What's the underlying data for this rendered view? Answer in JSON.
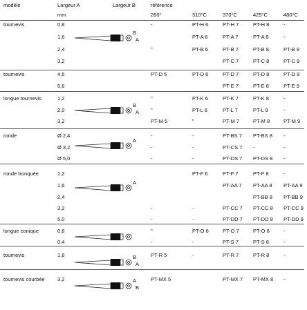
{
  "header": {
    "model": "modèle",
    "width_a": "Largeur A",
    "width_b": "Largeur B",
    "reference": "référence",
    "unit": "mm",
    "temps": [
      "260°",
      "310°C",
      "370°C",
      "425°C",
      "480°C"
    ]
  },
  "groups": [
    {
      "model": "tournevis",
      "dim_labels": [
        "B",
        "A"
      ],
      "rows": [
        [
          "0,8",
          "-",
          "PT-H 6",
          "PT-H 7",
          "PT-H 8",
          "-"
        ],
        [
          "1,6",
          null,
          "PT-A 6",
          "PT-A 7",
          "PT-A 8",
          "-"
        ],
        [
          "2,4",
          "\"",
          "PT-B 6",
          "PT-B 7",
          "PT-B 8",
          "PT-B 9"
        ],
        [
          "3,2",
          null,
          null,
          "PT-C 7",
          "PT-C 8",
          "PT-C 9"
        ]
      ]
    },
    {
      "model": "tournevis",
      "dim_labels": [],
      "rows": [
        [
          "4,6",
          "PT-D 5",
          "PT-D 6",
          "PT-D 7",
          "PT-D 8",
          "PT-D 9"
        ],
        [
          "5,6",
          null,
          null,
          "PT-E 7",
          "PT-E 8",
          "PT-E 9"
        ]
      ]
    },
    {
      "model": "longue tournevis",
      "dim_labels": [
        "B",
        "A"
      ],
      "rows": [
        [
          "1,2",
          "\"",
          "PT-K 6",
          "PT-K 7",
          "PT-K 8",
          "-"
        ],
        [
          "2,0",
          "\"",
          "PT-L 6",
          "PT-L 7",
          "PT-L 8",
          "-"
        ],
        [
          "3,2",
          "PT-M 5",
          "\"",
          "PT-M 7",
          "PT-M 8",
          "PT-M 9"
        ]
      ]
    },
    {
      "model": "ronde",
      "dim_labels": [
        "A"
      ],
      "rows": [
        [
          "Ø 2,4",
          "-",
          "-",
          "PT-BS 7",
          "PT-BS 8",
          "-"
        ],
        [
          "Ø 3,2",
          "-",
          "-",
          "PT-CS 7",
          "-",
          "-"
        ],
        [
          "Ø 5,0",
          "-",
          "-",
          "PT-DS 7",
          "PT-DS 8",
          "-"
        ]
      ]
    },
    {
      "model": "ronde tronquée",
      "dim_labels": [
        "A"
      ],
      "rows": [
        [
          "1,2",
          null,
          "PT-F 6",
          "PT-F 7",
          "PT-F 8",
          "-"
        ],
        [
          "1,6",
          null,
          null,
          "PT-AA 7",
          "PT-AA 8",
          "PT-AA 9"
        ],
        [
          "2,4",
          null,
          null,
          null,
          "PT-BB 8",
          "PT-BB 9"
        ],
        [
          "3,2",
          "-",
          "-",
          "PT-CC 7",
          "PT-CC 8",
          "PT-CC 9"
        ],
        [
          "5,0",
          "-",
          "-",
          "PT-DD 7",
          "PT-DD 8",
          "PT-DD 9"
        ]
      ]
    },
    {
      "model": "longue conique",
      "dim_labels": [],
      "rows": [
        [
          "0,8",
          "\"",
          "PT-O 6",
          "PT-O 7",
          "PT-O 8",
          "-"
        ],
        [
          "0,4",
          "-",
          "-",
          "PT-S 7",
          "PT-S 8",
          "-"
        ]
      ]
    },
    {
      "model": "tournevis",
      "dim_labels": [
        "B",
        "A"
      ],
      "rows": [
        [
          "1,6",
          "PT-R 5",
          "-",
          "PT-R 7",
          "PT-R 8",
          "-"
        ]
      ]
    },
    {
      "model": "tournevis courbée",
      "dim_labels": [
        "A",
        "B"
      ],
      "rows": [
        [
          "3,2",
          "PT-MX 5",
          null,
          "PT-MX 7",
          "PT-MX 8",
          "-"
        ]
      ]
    }
  ]
}
